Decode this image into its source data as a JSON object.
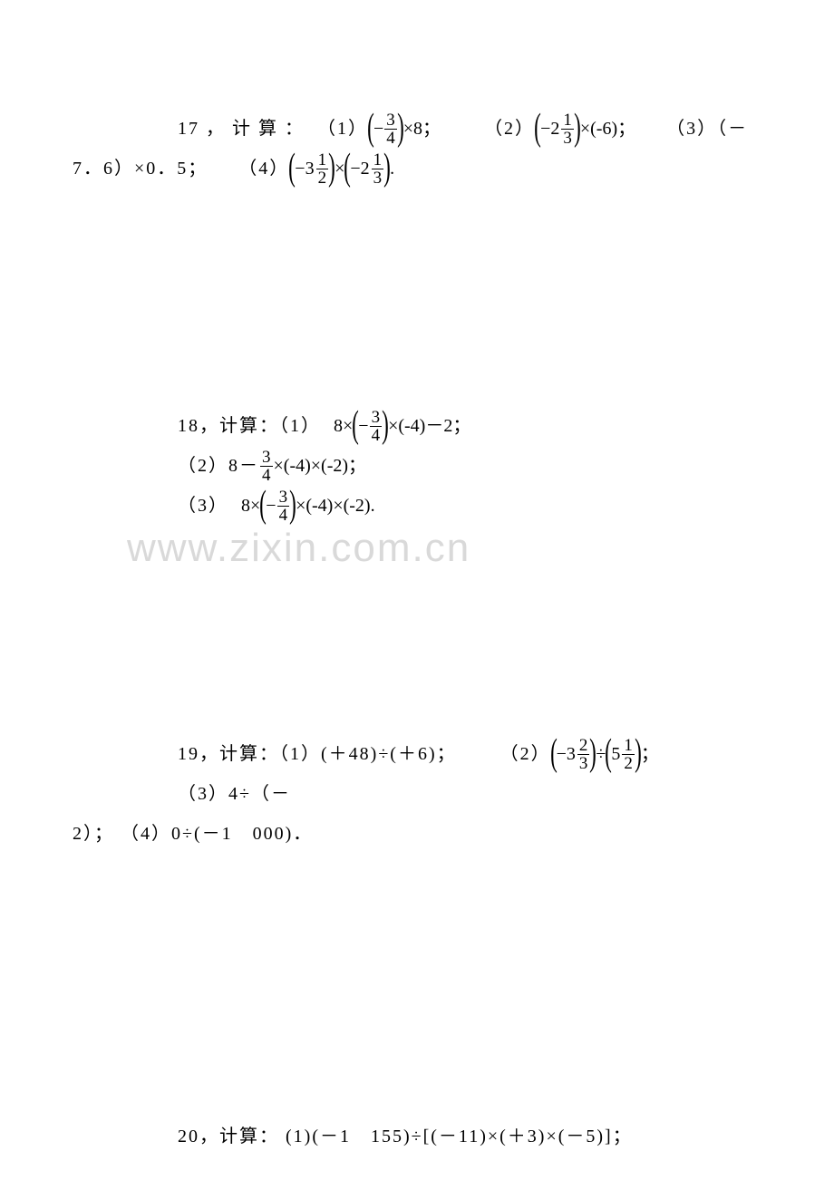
{
  "watermark": "www.zixin.com.cn",
  "p17": {
    "label": "17 ， 计 算 ：",
    "q1_label": "（1）",
    "q1_frac_num": "3",
    "q1_frac_den": "4",
    "q1_tail": "×8；",
    "q2_label": "（2）",
    "q2_whole": "2",
    "q2_frac_num": "1",
    "q2_frac_den": "3",
    "q2_tail": "×(-6)；",
    "q3_label": "（3）（－",
    "line2_a": "7．6）×0．5；",
    "q4_label": "（4）",
    "q4a_whole": "3",
    "q4a_num": "1",
    "q4a_den": "2",
    "q4_mid": "×",
    "q4b_whole": "2",
    "q4b_num": "1",
    "q4b_den": "3",
    "q4_tail": "."
  },
  "p18": {
    "label": "18，计算：（1）",
    "q1_pre": "8×",
    "q1_num": "3",
    "q1_den": "4",
    "q1_tail": "×(-4)－2；",
    "q2_label": "（2）8－",
    "q2_num": "3",
    "q2_den": "4",
    "q2_tail": "×(-4)×(-2)；",
    "q3_label": "（3）",
    "q3_pre": "8×",
    "q3_num": "3",
    "q3_den": "4",
    "q3_tail": "×(-4)×(-2)."
  },
  "p19": {
    "label": "19，计算：（1）(＋48)÷(＋6)；",
    "q2_label": "（2）",
    "q2a_whole": "3",
    "q2a_num": "2",
    "q2a_den": "3",
    "q2_mid": "÷",
    "q2b_whole": "5",
    "q2b_num": "1",
    "q2b_den": "2",
    "q2_tail": "；",
    "q3_label": "（3）4÷（－",
    "line2": "2）；  （4）0÷(－1　000)．"
  },
  "p20": {
    "label": "20，计算：  (1)(－1　155)÷[(－11)×(＋3)×(－5)]；"
  }
}
